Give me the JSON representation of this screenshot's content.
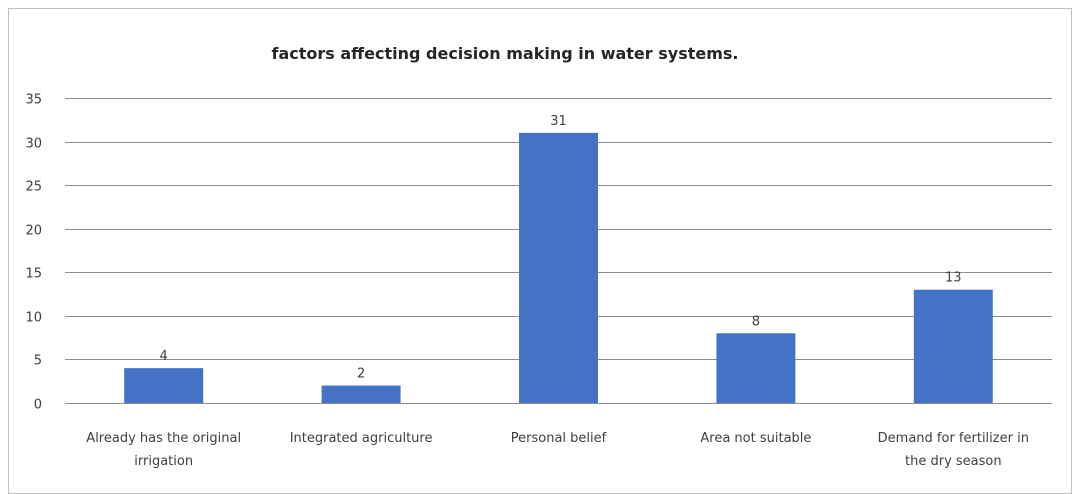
{
  "chart_data": {
    "type": "bar",
    "title": "factors affecting decision making in water systems.",
    "xlabel": "",
    "ylabel": "",
    "categories": [
      [
        "Already has the original",
        "irrigation"
      ],
      [
        "Integrated agriculture"
      ],
      [
        "Personal belief"
      ],
      [
        "Area not suitable"
      ],
      [
        "Demand for fertilizer in",
        "the dry season"
      ]
    ],
    "values": [
      4,
      2,
      31,
      8,
      13
    ],
    "ylim": [
      0,
      35
    ],
    "yticks": [
      0,
      5,
      10,
      15,
      20,
      25,
      30,
      35
    ],
    "grid": true,
    "legend": "none",
    "bar_color": "#4472c4"
  }
}
